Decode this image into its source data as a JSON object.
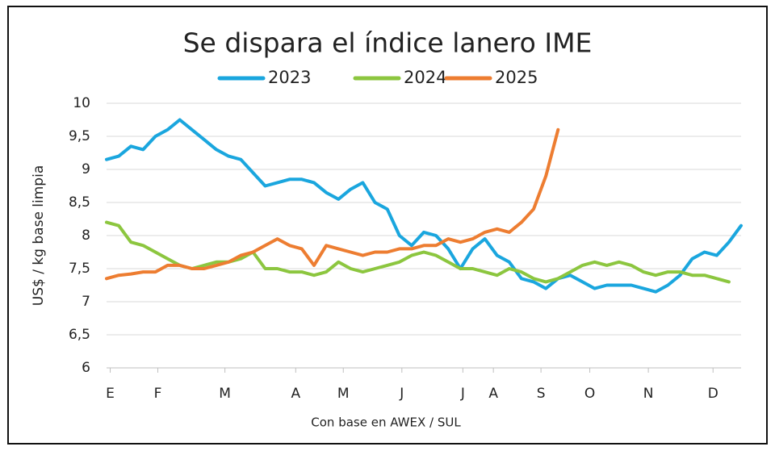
{
  "chart_data": {
    "type": "line",
    "title": "Se dispara el índice lanero IME",
    "y_label": "US$ / kg base limpia",
    "x_label": "Con base en AWEX / SUL",
    "x": [
      0,
      1,
      2,
      3,
      4,
      5,
      6,
      7,
      8,
      9,
      10,
      11,
      12,
      13,
      14,
      15,
      16,
      17,
      18,
      19,
      20,
      21,
      22,
      23,
      24,
      25,
      26,
      27,
      28,
      29,
      30,
      31,
      32,
      33,
      34,
      35,
      36,
      37,
      38,
      39,
      40,
      41,
      42,
      43,
      44,
      45,
      46,
      47,
      48,
      49,
      50,
      51,
      52
    ],
    "series": [
      {
        "name": "2023",
        "color": "#1aa6de",
        "values": [
          9.15,
          9.2,
          9.35,
          9.3,
          9.5,
          9.6,
          9.75,
          9.6,
          9.45,
          9.3,
          9.2,
          9.15,
          8.95,
          8.75,
          8.8,
          8.85,
          8.85,
          8.8,
          8.65,
          8.55,
          8.7,
          8.8,
          8.5,
          8.4,
          8.0,
          7.85,
          8.05,
          8.0,
          7.8,
          7.5,
          7.8,
          7.95,
          7.7,
          7.6,
          7.35,
          7.3,
          7.2,
          7.35,
          7.4,
          7.3,
          7.2,
          7.25,
          7.25,
          7.25,
          7.2,
          7.15,
          7.25,
          7.4,
          7.65,
          7.75,
          7.7,
          7.9,
          8.15
        ]
      },
      {
        "name": "2024",
        "color": "#8cc63f",
        "values": [
          8.2,
          8.15,
          7.9,
          7.85,
          7.75,
          7.65,
          7.55,
          7.5,
          7.55,
          7.6,
          7.6,
          7.65,
          7.75,
          7.5,
          7.5,
          7.45,
          7.45,
          7.4,
          7.45,
          7.6,
          7.5,
          7.45,
          7.5,
          7.55,
          7.6,
          7.7,
          7.75,
          7.7,
          7.6,
          7.5,
          7.5,
          7.45,
          7.4,
          7.5,
          7.45,
          7.35,
          7.3,
          7.35,
          7.45,
          7.55,
          7.6,
          7.55,
          7.6,
          7.55,
          7.45,
          7.4,
          7.45,
          7.45,
          7.4,
          7.4,
          7.35,
          7.3,
          null
        ]
      },
      {
        "name": "2025",
        "color": "#ed7d31",
        "values": [
          7.35,
          7.4,
          7.42,
          7.45,
          7.45,
          7.55,
          7.55,
          7.5,
          7.5,
          7.55,
          7.6,
          7.7,
          7.75,
          7.85,
          7.95,
          7.85,
          7.8,
          7.55,
          7.85,
          7.8,
          7.75,
          7.7,
          7.75,
          7.75,
          7.8,
          7.8,
          7.85,
          7.85,
          7.95,
          7.9,
          7.95,
          8.05,
          8.1,
          8.05,
          8.2,
          8.4,
          8.9,
          9.6,
          null,
          null,
          null,
          null,
          null,
          null,
          null,
          null,
          null,
          null,
          null,
          null,
          null,
          null,
          null
        ]
      }
    ],
    "xlim": [
      0,
      52
    ],
    "xticks": [
      {
        "value": 0.3,
        "label": "E"
      },
      {
        "value": 4.2,
        "label": "F"
      },
      {
        "value": 9.7,
        "label": "M"
      },
      {
        "value": 15.5,
        "label": "A"
      },
      {
        "value": 19.4,
        "label": "M"
      },
      {
        "value": 24.2,
        "label": "J"
      },
      {
        "value": 29.2,
        "label": "J"
      },
      {
        "value": 31.7,
        "label": "A"
      },
      {
        "value": 35.6,
        "label": "S"
      },
      {
        "value": 39.6,
        "label": "O"
      },
      {
        "value": 44.4,
        "label": "N"
      },
      {
        "value": 49.7,
        "label": "D"
      }
    ],
    "ylim": [
      6,
      10
    ],
    "yticks": [
      6,
      {
        "value": 6.5,
        "label": "6,5"
      },
      7,
      {
        "value": 7.5,
        "label": "7,5"
      },
      8,
      {
        "value": 8.5,
        "label": "8,5"
      },
      9,
      {
        "value": 9.5,
        "label": "9,5"
      },
      10
    ],
    "grid": true,
    "legend": "top"
  }
}
